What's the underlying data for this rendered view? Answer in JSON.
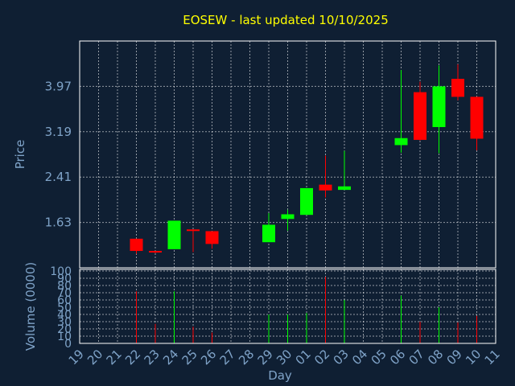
{
  "chart_data": {
    "type": "candlestick",
    "title": "EOSEW - last updated 10/10/2025",
    "price_panel": {
      "ylabel": "Price",
      "yticks": [
        "1.63",
        "2.41",
        "3.19",
        "3.97"
      ],
      "ylim": [
        0.85,
        4.75
      ],
      "grid": true
    },
    "volume_panel": {
      "ylabel": "Volume (0000)",
      "yticks": [
        "0",
        "10",
        "20",
        "30",
        "40",
        "50",
        "60",
        "70",
        "80",
        "90",
        "100"
      ],
      "ylim": [
        0,
        100
      ],
      "grid": true
    },
    "xlabel": "Day",
    "x_ticks": [
      "19",
      "20",
      "21",
      "22",
      "23",
      "24",
      "25",
      "26",
      "27",
      "28",
      "29",
      "30",
      "01",
      "02",
      "03",
      "04",
      "05",
      "06",
      "07",
      "08",
      "09",
      "10",
      "11"
    ],
    "candles": [
      {
        "day": "22",
        "open": 1.35,
        "high": 1.35,
        "low": 1.09,
        "close": 1.14,
        "volume": 72
      },
      {
        "day": "23",
        "open": 1.14,
        "high": 1.14,
        "low": 1.1,
        "close": 1.12,
        "volume": 27
      },
      {
        "day": "24",
        "open": 1.17,
        "high": 1.66,
        "low": 1.17,
        "close": 1.66,
        "volume": 72
      },
      {
        "day": "25",
        "open": 1.51,
        "high": 1.51,
        "low": 1.12,
        "close": 1.49,
        "volume": 23
      },
      {
        "day": "26",
        "open": 1.48,
        "high": 1.48,
        "low": 1.18,
        "close": 1.26,
        "volume": 15
      },
      {
        "day": "29",
        "open": 1.29,
        "high": 1.79,
        "low": 1.29,
        "close": 1.59,
        "volume": 40
      },
      {
        "day": "30",
        "open": 1.69,
        "high": 1.85,
        "low": 1.49,
        "close": 1.77,
        "volume": 40
      },
      {
        "day": "01",
        "open": 1.76,
        "high": 2.22,
        "low": 1.76,
        "close": 2.22,
        "volume": 42
      },
      {
        "day": "02",
        "open": 2.28,
        "high": 2.78,
        "low": 2.06,
        "close": 2.18,
        "volume": 92
      },
      {
        "day": "03",
        "open": 2.19,
        "high": 2.86,
        "low": 2.19,
        "close": 2.25,
        "volume": 60
      },
      {
        "day": "06",
        "open": 2.96,
        "high": 4.25,
        "low": 2.83,
        "close": 3.08,
        "volume": 66
      },
      {
        "day": "07",
        "open": 3.87,
        "high": 4.05,
        "low": 3.04,
        "close": 3.05,
        "volume": 30
      },
      {
        "day": "08",
        "open": 3.27,
        "high": 4.33,
        "low": 2.82,
        "close": 3.97,
        "volume": 50
      },
      {
        "day": "09",
        "open": 4.1,
        "high": 4.35,
        "low": 3.73,
        "close": 3.79,
        "volume": 29
      },
      {
        "day": "10",
        "open": 3.79,
        "high": 3.79,
        "low": 2.87,
        "close": 3.07,
        "volume": 38
      }
    ],
    "colors": {
      "up": "#00ff00",
      "down": "#ff0000",
      "grid": "#ffffff",
      "frame": "#ffffff",
      "text": "#7fa3c8",
      "title": "#ffff00",
      "background": "#0f1f33"
    }
  }
}
